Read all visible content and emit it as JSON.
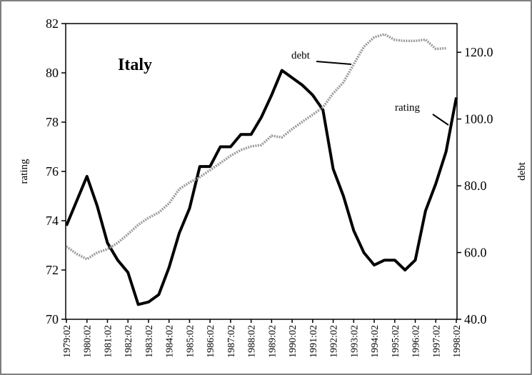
{
  "chart_data": {
    "type": "line",
    "annotations": [
      "Italy",
      "debt",
      "rating"
    ],
    "ylabel": "rating",
    "y2label": "debt",
    "categories": [
      "1979:02",
      null,
      "1980:02",
      null,
      "1981:02",
      null,
      "1982:02",
      null,
      "1983:02",
      null,
      "1984:02",
      null,
      "1985:02",
      null,
      "1986:02",
      null,
      "1987:02",
      null,
      "1988:02",
      null,
      "1989:02",
      null,
      "1990:02",
      null,
      "1991:02",
      null,
      "1992:02",
      null,
      "1993:02",
      null,
      "1994:02",
      null,
      "1995:02",
      null,
      "1996:02",
      null,
      "1997:02",
      null,
      "1998:02"
    ],
    "series": [
      {
        "name": "rating",
        "color": "#000000",
        "axis": "y",
        "values": [
          73.8,
          74.8,
          75.8,
          74.6,
          73.1,
          72.4,
          71.9,
          70.6,
          70.7,
          71.0,
          72.1,
          73.5,
          74.5,
          76.2,
          76.2,
          77.0,
          77.0,
          77.5,
          77.5,
          78.2,
          79.1,
          80.1,
          79.8,
          79.5,
          79.1,
          78.5,
          76.1,
          75.0,
          73.6,
          72.7,
          72.2,
          72.4,
          72.4,
          72.0,
          72.4,
          74.4,
          75.5,
          76.8,
          79.0
        ]
      },
      {
        "name": "debt",
        "color": "#9a9a9a",
        "axis": "y2",
        "values": [
          61.8,
          59.6,
          58.0,
          60.0,
          61.0,
          62.9,
          65.5,
          68.3,
          70.4,
          72.0,
          74.7,
          79.0,
          81.0,
          82.6,
          84.7,
          86.8,
          89.0,
          90.7,
          91.8,
          92.2,
          95.0,
          94.5,
          97.0,
          99.2,
          101.3,
          103.5,
          107.7,
          111.0,
          116.4,
          121.7,
          124.5,
          125.4,
          123.7,
          123.4,
          123.4,
          123.8,
          121.0,
          121.2,
          null
        ]
      }
    ],
    "ylim": [
      70,
      82
    ],
    "yticks": [
      70,
      72,
      74,
      76,
      78,
      80,
      82
    ],
    "y2lim": [
      40,
      128.6
    ],
    "y2ticks": [
      {
        "value": 40,
        "label": "40.0"
      },
      {
        "value": 60,
        "label": "60.0"
      },
      {
        "value": 80,
        "label": "80.0"
      },
      {
        "value": 100,
        "label": "100.0"
      },
      {
        "value": 120,
        "label": "120.0"
      }
    ]
  }
}
